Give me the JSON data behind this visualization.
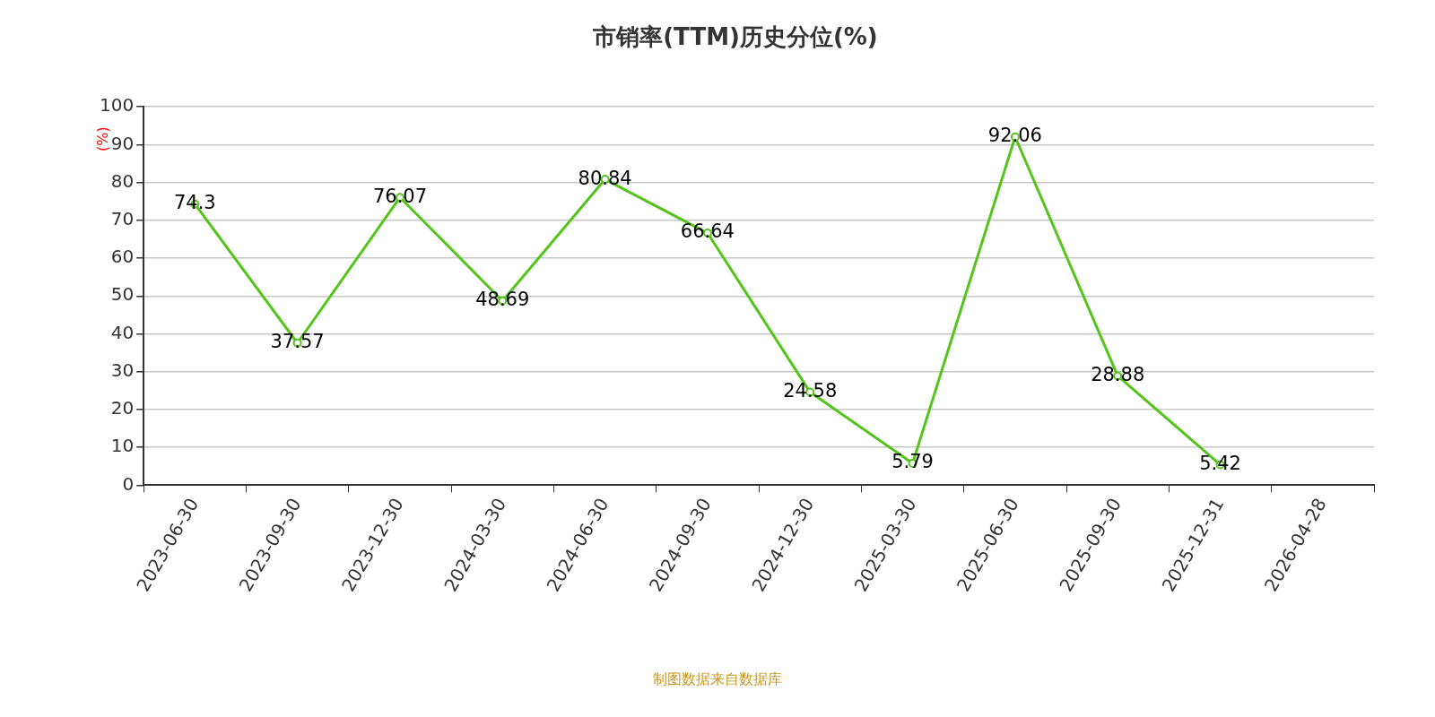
{
  "chart_data": {
    "type": "line",
    "title": "市销率(TTM)历史分位(%)",
    "ylabel": "(%)",
    "categories": [
      "2023-06-30",
      "2023-09-30",
      "2023-12-30",
      "2024-03-30",
      "2024-06-30",
      "2024-09-30",
      "2024-12-30",
      "2025-03-30",
      "2025-06-30",
      "2025-09-30",
      "2025-12-31",
      "2026-04-28"
    ],
    "series": [
      {
        "color": "#52c41a",
        "values": [
          74.3,
          37.57,
          76.07,
          48.69,
          80.84,
          66.64,
          24.58,
          5.79,
          92.06,
          28.88,
          5.42,
          null
        ]
      }
    ],
    "ylim": [
      0,
      100
    ],
    "yticks": [
      0,
      10,
      20,
      30,
      40,
      50,
      60,
      70,
      80,
      90,
      100
    ],
    "grid": "y",
    "legend": false,
    "marker": "circle",
    "line_style": "solid",
    "data_labels": true,
    "annotations": [
      "制图数据来自数据库"
    ]
  }
}
